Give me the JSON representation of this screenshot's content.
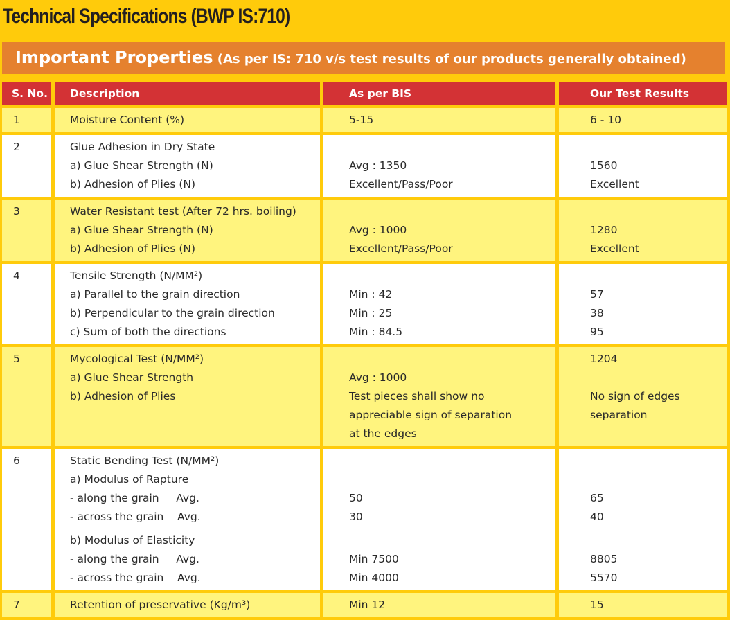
{
  "title": "Technical Specifications (BWP IS:710)",
  "banner": {
    "main": "Important Properties",
    "sub": " (As per IS: 710 v/s test results of our products generally obtained)"
  },
  "colors": {
    "background": "#FFCB0B",
    "banner": "#E5812E",
    "header": "#D33235",
    "row_yellow": "#FFF47E",
    "row_white": "#FFFFFF"
  },
  "table": {
    "headers": [
      "S. No.",
      "Description",
      "As per BIS",
      "Our Test Results"
    ],
    "rows": [
      {
        "style": "y",
        "sno": [
          "1"
        ],
        "desc": [
          "Moisture Content (%)"
        ],
        "bis": [
          "5-15"
        ],
        "ours": [
          "6 - 10"
        ]
      },
      {
        "style": "w",
        "sno": [
          "2"
        ],
        "desc": [
          "Glue Adhesion in Dry State",
          "a) Glue Shear Strength (N)",
          "b) Adhesion of Plies (N)"
        ],
        "bis": [
          "",
          "Avg : 1350",
          "Excellent/Pass/Poor"
        ],
        "ours": [
          "",
          "1560",
          "Excellent"
        ]
      },
      {
        "style": "y",
        "sno": [
          "3"
        ],
        "desc": [
          "Water Resistant test (After 72 hrs. boiling)",
          "a) Glue Shear Strength (N)",
          "b) Adhesion of Plies (N)"
        ],
        "bis": [
          "",
          "Avg : 1000",
          "Excellent/Pass/Poor"
        ],
        "ours": [
          "",
          "1280",
          "Excellent"
        ]
      },
      {
        "style": "w",
        "sno": [
          "4"
        ],
        "desc": [
          "Tensile Strength (N/MM²)",
          "a) Parallel to the grain direction",
          "b) Perpendicular to the grain direction",
          "c) Sum of both the directions"
        ],
        "bis": [
          "",
          "Min : 42",
          "Min : 25",
          "Min : 84.5"
        ],
        "ours": [
          "",
          "57",
          "38",
          "95"
        ]
      },
      {
        "style": "y",
        "sno": [
          "5"
        ],
        "desc": [
          "Mycological Test (N/MM²)",
          "a) Glue Shear Strength",
          "b) Adhesion of Plies"
        ],
        "bis": [
          "",
          "Avg : 1000",
          "Test pieces shall show no",
          "appreciable sign of separation",
          "at the edges"
        ],
        "ours": [
          "1204",
          "",
          "No sign of edges",
          "separation"
        ]
      },
      {
        "style": "w",
        "sno": [
          "6"
        ],
        "desc": [
          "Static Bending Test (N/MM²)",
          "a) Modulus of Rapture",
          "- along the grain     Avg.",
          "- across the grain    Avg.",
          "b) Modulus of Elasticity",
          "- along the grain     Avg.",
          "- across the grain    Avg."
        ],
        "bis": [
          "",
          "",
          "50",
          "30",
          "",
          "Min 7500",
          "Min 4000"
        ],
        "ours": [
          "",
          "",
          "65",
          "40",
          "",
          "8805",
          "5570"
        ]
      },
      {
        "style": "y",
        "sno": [
          "7"
        ],
        "desc": [
          "Retention of preservative (Kg/m³)"
        ],
        "bis": [
          "Min 12"
        ],
        "ours": [
          "15"
        ]
      }
    ]
  }
}
